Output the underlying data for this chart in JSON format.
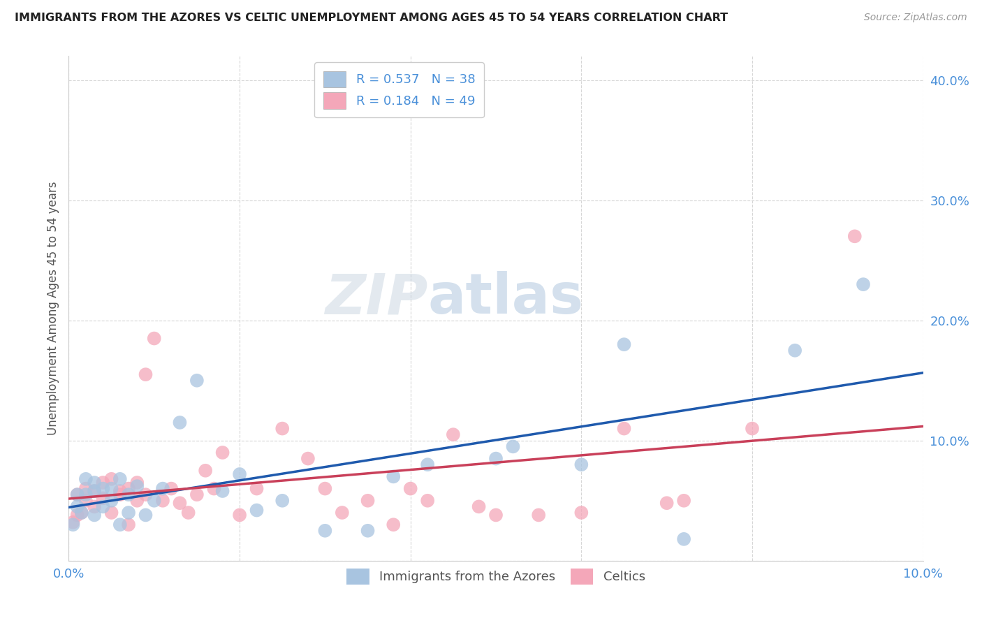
{
  "title": "IMMIGRANTS FROM THE AZORES VS CELTIC UNEMPLOYMENT AMONG AGES 45 TO 54 YEARS CORRELATION CHART",
  "source": "Source: ZipAtlas.com",
  "ylabel": "Unemployment Among Ages 45 to 54 years",
  "xlim": [
    0.0,
    0.1
  ],
  "ylim": [
    0.0,
    0.42
  ],
  "x_ticks": [
    0.0,
    0.02,
    0.04,
    0.06,
    0.08,
    0.1
  ],
  "y_ticks": [
    0.0,
    0.1,
    0.2,
    0.3,
    0.4
  ],
  "azores_color": "#a8c4e0",
  "azores_line_color": "#1f5aad",
  "celtics_color": "#f4a7b9",
  "celtics_line_color": "#c9405a",
  "R_azores": 0.537,
  "N_azores": 38,
  "R_celtics": 0.184,
  "N_celtics": 49,
  "azores_x": [
    0.0005,
    0.001,
    0.001,
    0.0015,
    0.002,
    0.002,
    0.003,
    0.003,
    0.003,
    0.004,
    0.004,
    0.005,
    0.005,
    0.006,
    0.006,
    0.007,
    0.007,
    0.008,
    0.009,
    0.01,
    0.011,
    0.013,
    0.015,
    0.018,
    0.02,
    0.022,
    0.025,
    0.03,
    0.035,
    0.038,
    0.042,
    0.05,
    0.052,
    0.06,
    0.065,
    0.072,
    0.085,
    0.093
  ],
  "azores_y": [
    0.03,
    0.045,
    0.055,
    0.04,
    0.055,
    0.068,
    0.058,
    0.065,
    0.038,
    0.045,
    0.06,
    0.05,
    0.06,
    0.068,
    0.03,
    0.055,
    0.04,
    0.062,
    0.038,
    0.05,
    0.06,
    0.115,
    0.15,
    0.058,
    0.072,
    0.042,
    0.05,
    0.025,
    0.025,
    0.07,
    0.08,
    0.085,
    0.095,
    0.08,
    0.18,
    0.018,
    0.175,
    0.23
  ],
  "celtics_x": [
    0.0005,
    0.001,
    0.001,
    0.0015,
    0.002,
    0.002,
    0.003,
    0.003,
    0.004,
    0.004,
    0.005,
    0.005,
    0.006,
    0.006,
    0.007,
    0.007,
    0.008,
    0.008,
    0.009,
    0.009,
    0.01,
    0.011,
    0.012,
    0.013,
    0.014,
    0.015,
    0.016,
    0.017,
    0.018,
    0.02,
    0.022,
    0.025,
    0.028,
    0.03,
    0.032,
    0.035,
    0.038,
    0.04,
    0.042,
    0.045,
    0.048,
    0.05,
    0.055,
    0.06,
    0.065,
    0.07,
    0.072,
    0.08,
    0.092
  ],
  "celtics_y": [
    0.032,
    0.038,
    0.055,
    0.04,
    0.06,
    0.05,
    0.045,
    0.058,
    0.052,
    0.065,
    0.068,
    0.04,
    0.058,
    0.055,
    0.06,
    0.03,
    0.05,
    0.065,
    0.055,
    0.155,
    0.185,
    0.05,
    0.06,
    0.048,
    0.04,
    0.055,
    0.075,
    0.06,
    0.09,
    0.038,
    0.06,
    0.11,
    0.085,
    0.06,
    0.04,
    0.05,
    0.03,
    0.06,
    0.05,
    0.105,
    0.045,
    0.038,
    0.038,
    0.04,
    0.11,
    0.048,
    0.05,
    0.11,
    0.27
  ],
  "background_color": "#ffffff",
  "grid_color": "#cccccc",
  "tick_color": "#4a90d9",
  "watermark_zip": "ZIP",
  "watermark_atlas": "atlas",
  "legend_label_azores": "Immigrants from the Azores",
  "legend_label_celtics": "Celtics"
}
